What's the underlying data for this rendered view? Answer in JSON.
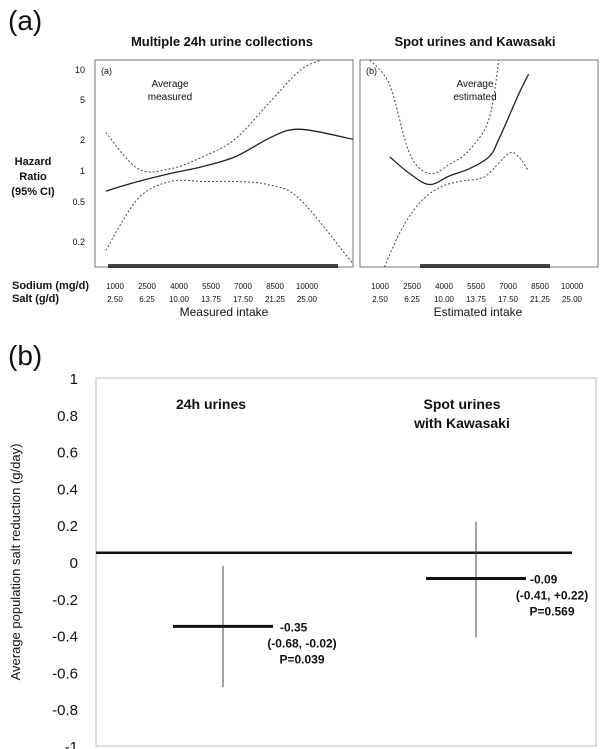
{
  "panel_labels": {
    "a": "(a)",
    "b": "(b)"
  },
  "colors": {
    "background": "#ffffff",
    "line": "#222222",
    "dotted": "#444444",
    "axis": "#555555",
    "text": "#111111"
  },
  "panel_a": {
    "left": {
      "title": "Multiple 24h urine collections",
      "inset_label": "(a)",
      "annotation": [
        "Average",
        "measured"
      ],
      "xlabel": "Measured intake"
    },
    "right": {
      "title": "Spot urines and Kawasaki",
      "inset_label": "(b)",
      "annotation": [
        "Average",
        "estimated"
      ],
      "xlabel": "Estimated intake"
    },
    "ylabel": [
      "Hazard",
      "Ratio",
      "(95% CI)"
    ],
    "yticks": [
      "10",
      "5",
      "2",
      "1",
      "0.5",
      "0.2"
    ],
    "sodium_label": "Sodium (mg/d)",
    "salt_label": "Salt (g/d)",
    "sodium_ticks": [
      "1000",
      "2500",
      "4000",
      "5500",
      "7000",
      "8500",
      "10000"
    ],
    "salt_ticks": [
      "2.50",
      "6.25",
      "10.00",
      "13.75",
      "17.50",
      "21.25",
      "25.00"
    ]
  },
  "chart_data": [
    {
      "type": "line",
      "title": "Multiple 24h urine collections",
      "xlabel": "Measured intake",
      "ylabel": "Hazard Ratio (95% CI)",
      "yscale": "log",
      "ylim": [
        0.15,
        10
      ],
      "xlim": [
        500,
        12500
      ],
      "series": [
        {
          "x": [
            1000,
            2500,
            4000,
            5500,
            7000,
            8500,
            9500,
            10500,
            12500
          ],
          "y": [
            0.7,
            0.85,
            1.0,
            1.15,
            1.4,
            2.0,
            2.4,
            2.4,
            2.0
          ]
        },
        {
          "x": [
            1000,
            2500,
            4000,
            5500,
            7000,
            8500,
            10000,
            11000
          ],
          "y": [
            2.3,
            1.1,
            1.1,
            1.4,
            2.0,
            4.0,
            8.0,
            10.0
          ]
        },
        {
          "x": [
            1000,
            2500,
            4000,
            5500,
            7000,
            8500,
            10000,
            12500
          ],
          "y": [
            0.21,
            0.6,
            0.85,
            0.85,
            0.85,
            0.8,
            0.6,
            0.16
          ]
        }
      ]
    },
    {
      "type": "line",
      "title": "Spot urines and Kawasaki",
      "xlabel": "Estimated intake",
      "ylabel": "Hazard Ratio (95% CI)",
      "yscale": "log",
      "ylim": [
        0.15,
        10
      ],
      "xlim": [
        500,
        12500
      ],
      "series": [
        {
          "x": [
            2000,
            3000,
            4000,
            5000,
            6000,
            7000,
            7500,
            8500,
            9000
          ],
          "y": [
            1.4,
            1.0,
            0.8,
            0.95,
            1.1,
            1.4,
            2.0,
            5.0,
            7.5
          ]
        },
        {
          "x": [
            1000,
            2000,
            3000,
            4000,
            5000,
            6000,
            7000,
            7500
          ],
          "y": [
            10.0,
            6.0,
            1.5,
            1.0,
            1.2,
            1.6,
            3.0,
            10.0
          ]
        },
        {
          "x": [
            1500,
            2500,
            3500,
            4500,
            5500,
            6500,
            7000,
            8000,
            8500,
            9000
          ],
          "y": [
            0.12,
            0.3,
            0.55,
            0.75,
            0.85,
            0.9,
            1.0,
            1.5,
            1.4,
            1.05
          ]
        }
      ]
    },
    {
      "type": "scatter",
      "title": "",
      "ylabel": "Average population salt reduction (g/day)",
      "ylim": [
        -1,
        1
      ],
      "yticks": [
        "1",
        "0.8",
        "0.6",
        "0.4",
        "0.2",
        "0",
        "-0.2",
        "-0.4",
        "-0.6",
        "-0.8",
        "-1"
      ],
      "reference_line": 0.05,
      "groups": [
        {
          "label": "24h urines",
          "estimate": -0.35,
          "ci": [
            -0.68,
            -0.02
          ],
          "estimate_text": "-0.35",
          "ci_text": "(-0.68, -0.02)",
          "p_text": "P=0.039"
        },
        {
          "label": "Spot urines\nwith Kawasaki",
          "estimate": -0.09,
          "ci": [
            -0.41,
            0.22
          ],
          "estimate_text": "-0.09",
          "ci_text": "(-0.41, +0.22)",
          "p_text": "P=0.569"
        }
      ]
    }
  ]
}
